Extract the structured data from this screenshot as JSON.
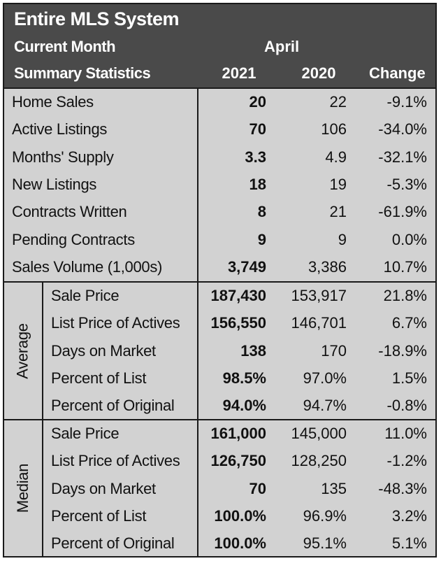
{
  "header": {
    "title": "Entire MLS System",
    "subtitle1": "Current Month",
    "subtitle2": "Summary Statistics",
    "month": "April",
    "col_2021": "2021",
    "col_2020": "2020",
    "col_change": "Change"
  },
  "summary": {
    "rows": [
      {
        "label": "Home Sales",
        "v2021": "20",
        "v2020": "22",
        "change": "-9.1%"
      },
      {
        "label": "Active Listings",
        "v2021": "70",
        "v2020": "106",
        "change": "-34.0%"
      },
      {
        "label": "Months' Supply",
        "v2021": "3.3",
        "v2020": "4.9",
        "change": "-32.1%"
      },
      {
        "label": "New Listings",
        "v2021": "18",
        "v2020": "19",
        "change": "-5.3%"
      },
      {
        "label": "Contracts Written",
        "v2021": "8",
        "v2020": "21",
        "change": "-61.9%"
      },
      {
        "label": "Pending Contracts",
        "v2021": "9",
        "v2020": "9",
        "change": "0.0%"
      },
      {
        "label": "Sales Volume (1,000s)",
        "v2021": "3,749",
        "v2020": "3,386",
        "change": "10.7%"
      }
    ]
  },
  "average": {
    "group_label": "Average",
    "rows": [
      {
        "label": "Sale Price",
        "v2021": "187,430",
        "v2020": "153,917",
        "change": "21.8%"
      },
      {
        "label": "List Price of Actives",
        "v2021": "156,550",
        "v2020": "146,701",
        "change": "6.7%"
      },
      {
        "label": "Days on Market",
        "v2021": "138",
        "v2020": "170",
        "change": "-18.9%"
      },
      {
        "label": "Percent of List",
        "v2021": "98.5%",
        "v2020": "97.0%",
        "change": "1.5%"
      },
      {
        "label": "Percent of Original",
        "v2021": "94.0%",
        "v2020": "94.7%",
        "change": "-0.8%"
      }
    ]
  },
  "median": {
    "group_label": "Median",
    "rows": [
      {
        "label": "Sale Price",
        "v2021": "161,000",
        "v2020": "145,000",
        "change": "11.0%"
      },
      {
        "label": "List Price of Actives",
        "v2021": "126,750",
        "v2020": "128,250",
        "change": "-1.2%"
      },
      {
        "label": "Days on Market",
        "v2021": "70",
        "v2020": "135",
        "change": "-48.3%"
      },
      {
        "label": "Percent of List",
        "v2021": "100.0%",
        "v2020": "96.9%",
        "change": "3.2%"
      },
      {
        "label": "Percent of Original",
        "v2021": "100.0%",
        "v2020": "95.1%",
        "change": "5.1%"
      }
    ]
  }
}
